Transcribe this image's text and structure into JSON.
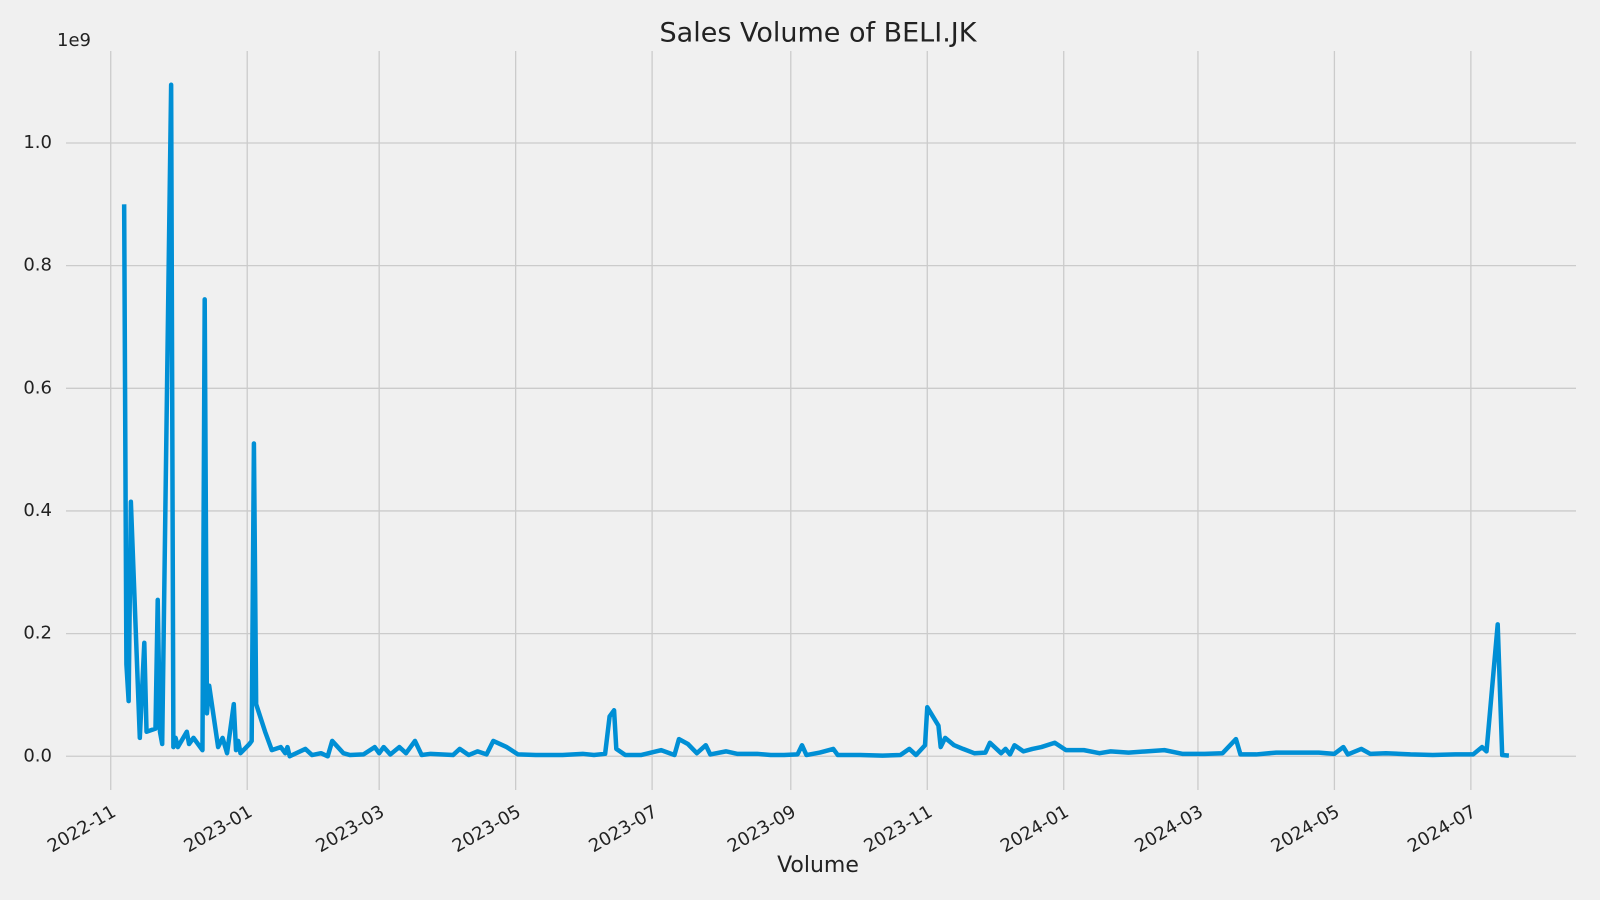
{
  "chart_data": {
    "type": "line",
    "title": "Sales Volume of BELI.JK",
    "xlabel": "Volume",
    "y_offset_label": "1e9",
    "x": [
      "2022-11-07",
      "2022-11-08",
      "2022-11-09",
      "2022-11-10",
      "2022-11-14",
      "2022-11-16",
      "2022-11-17",
      "2022-11-21",
      "2022-11-22",
      "2022-11-23",
      "2022-11-24",
      "2022-11-28",
      "2022-11-29",
      "2022-11-30",
      "2022-12-01",
      "2022-12-05",
      "2022-12-06",
      "2022-12-08",
      "2022-12-12",
      "2022-12-13",
      "2022-12-14",
      "2022-12-15",
      "2022-12-19",
      "2022-12-21",
      "2022-12-23",
      "2022-12-26",
      "2022-12-27",
      "2022-12-28",
      "2022-12-29",
      "2023-01-02",
      "2023-01-03",
      "2023-01-04",
      "2023-01-05",
      "2023-01-09",
      "2023-01-12",
      "2023-01-16",
      "2023-01-18",
      "2023-01-19",
      "2023-01-20",
      "2023-01-27",
      "2023-01-30",
      "2023-02-03",
      "2023-02-06",
      "2023-02-08",
      "2023-02-13",
      "2023-02-16",
      "2023-02-22",
      "2023-02-27",
      "2023-03-01",
      "2023-03-03",
      "2023-03-06",
      "2023-03-10",
      "2023-03-13",
      "2023-03-17",
      "2023-03-20",
      "2023-03-24",
      "2023-04-03",
      "2023-04-06",
      "2023-04-10",
      "2023-04-14",
      "2023-04-18",
      "2023-04-21",
      "2023-04-27",
      "2023-05-02",
      "2023-05-10",
      "2023-05-22",
      "2023-05-31",
      "2023-06-05",
      "2023-06-10",
      "2023-06-12",
      "2023-06-14",
      "2023-06-15",
      "2023-06-19",
      "2023-06-26",
      "2023-07-05",
      "2023-07-11",
      "2023-07-13",
      "2023-07-17",
      "2023-07-21",
      "2023-07-25",
      "2023-07-27",
      "2023-08-03",
      "2023-08-08",
      "2023-08-17",
      "2023-08-23",
      "2023-08-29",
      "2023-09-04",
      "2023-09-06",
      "2023-09-08",
      "2023-09-14",
      "2023-09-20",
      "2023-09-22",
      "2023-10-02",
      "2023-10-12",
      "2023-10-20",
      "2023-10-24",
      "2023-10-27",
      "2023-10-31",
      "2023-11-01",
      "2023-11-06",
      "2023-11-07",
      "2023-11-09",
      "2023-11-13",
      "2023-11-17",
      "2023-11-22",
      "2023-11-27",
      "2023-11-29",
      "2023-12-04",
      "2023-12-06",
      "2023-12-08",
      "2023-12-10",
      "2023-12-14",
      "2023-12-18",
      "2023-12-22",
      "2023-12-28",
      "2024-01-02",
      "2024-01-10",
      "2024-01-17",
      "2024-01-22",
      "2024-01-30",
      "2024-02-07",
      "2024-02-15",
      "2024-02-23",
      "2024-03-04",
      "2024-03-12",
      "2024-03-18",
      "2024-03-20",
      "2024-03-27",
      "2024-04-05",
      "2024-04-18",
      "2024-04-24",
      "2024-05-01",
      "2024-05-05",
      "2024-05-07",
      "2024-05-13",
      "2024-05-17",
      "2024-05-24",
      "2024-06-04",
      "2024-06-14",
      "2024-06-24",
      "2024-07-02",
      "2024-07-06",
      "2024-07-08",
      "2024-07-13",
      "2024-07-15",
      "2024-07-18"
    ],
    "series": [
      {
        "name": "Volume",
        "color": "#008fd5",
        "values": [
          0.9,
          0.15,
          0.09,
          0.415,
          0.03,
          0.185,
          0.04,
          0.045,
          0.255,
          0.04,
          0.02,
          1.095,
          0.015,
          0.03,
          0.015,
          0.04,
          0.02,
          0.03,
          0.01,
          0.745,
          0.07,
          0.115,
          0.015,
          0.03,
          0.005,
          0.085,
          0.01,
          0.025,
          0.005,
          0.02,
          0.025,
          0.51,
          0.085,
          0.04,
          0.01,
          0.015,
          0.005,
          0.015,
          0.0,
          0.012,
          0.002,
          0.005,
          0.0,
          0.025,
          0.005,
          0.002,
          0.003,
          0.015,
          0.005,
          0.015,
          0.003,
          0.015,
          0.005,
          0.025,
          0.002,
          0.004,
          0.002,
          0.012,
          0.002,
          0.008,
          0.003,
          0.025,
          0.015,
          0.003,
          0.002,
          0.002,
          0.004,
          0.002,
          0.004,
          0.065,
          0.075,
          0.012,
          0.002,
          0.002,
          0.01,
          0.002,
          0.028,
          0.02,
          0.005,
          0.018,
          0.003,
          0.008,
          0.004,
          0.004,
          0.002,
          0.002,
          0.003,
          0.018,
          0.002,
          0.006,
          0.012,
          0.002,
          0.002,
          0.001,
          0.002,
          0.012,
          0.002,
          0.018,
          0.08,
          0.05,
          0.015,
          0.03,
          0.018,
          0.012,
          0.005,
          0.006,
          0.022,
          0.005,
          0.012,
          0.003,
          0.018,
          0.008,
          0.012,
          0.015,
          0.022,
          0.01,
          0.01,
          0.005,
          0.008,
          0.006,
          0.008,
          0.01,
          0.004,
          0.004,
          0.005,
          0.028,
          0.003,
          0.003,
          0.006,
          0.006,
          0.006,
          0.004,
          0.015,
          0.003,
          0.012,
          0.004,
          0.005,
          0.003,
          0.002,
          0.003,
          0.003,
          0.015,
          0.008,
          0.215,
          0.002,
          0.001
        ]
      }
    ],
    "xlim": [
      "2022-10-12",
      "2024-08-17"
    ],
    "xticks": [
      "2022-11",
      "2023-01",
      "2023-03",
      "2023-05",
      "2023-07",
      "2023-09",
      "2023-11",
      "2024-01",
      "2024-03",
      "2024-05",
      "2024-07"
    ],
    "ylim": [
      -0.055,
      1.15
    ],
    "yticks": [
      {
        "value": 0,
        "label": "0.0"
      },
      0.2,
      0.4,
      0.6,
      0.8,
      {
        "value": 1,
        "label": "1.0"
      }
    ],
    "grid": true
  }
}
